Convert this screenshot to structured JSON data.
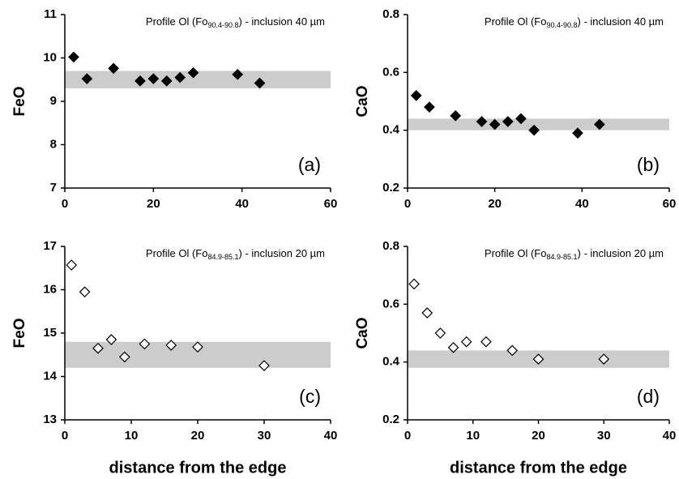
{
  "chart_data": [
    {
      "type": "scatter",
      "panel_label": "(a)",
      "y_label": "FeO",
      "annotation": {
        "prefix": "Profile Ol (Fo",
        "subscript": "90.4-90.8",
        "suffix": ") - inclusion 40 µm"
      },
      "x": [
        2,
        5,
        11,
        17,
        20,
        23,
        26,
        29,
        39,
        44
      ],
      "values": [
        10.02,
        9.52,
        9.76,
        9.47,
        9.52,
        9.47,
        9.55,
        9.66,
        9.62,
        9.42
      ],
      "marker_fill": "#000000",
      "band": [
        9.3,
        9.7
      ],
      "band_color": "#cccccc",
      "xlim": [
        0,
        60
      ],
      "xticks": [
        0,
        20,
        40,
        60
      ],
      "ylim": [
        7,
        11
      ],
      "yticks": [
        7,
        8,
        9,
        10,
        11
      ]
    },
    {
      "type": "scatter",
      "panel_label": "(b)",
      "y_label": "CaO",
      "annotation": {
        "prefix": "Profile Ol (Fo",
        "subscript": "90.4-90.8",
        "suffix": ") - inclusion 40 µm"
      },
      "x": [
        2,
        5,
        11,
        17,
        20,
        23,
        26,
        29,
        39,
        44
      ],
      "values": [
        0.52,
        0.48,
        0.45,
        0.43,
        0.42,
        0.43,
        0.44,
        0.4,
        0.39,
        0.42
      ],
      "marker_fill": "#000000",
      "band": [
        0.4,
        0.44
      ],
      "band_color": "#cccccc",
      "xlim": [
        0,
        60
      ],
      "xticks": [
        0,
        20,
        40,
        60
      ],
      "ylim": [
        0.2,
        0.8
      ],
      "yticks": [
        0.2,
        0.4,
        0.6,
        0.8
      ]
    },
    {
      "type": "scatter",
      "panel_label": "(c)",
      "y_label": "FeO",
      "x_label": "distance from the edge",
      "annotation": {
        "prefix": "Profile Ol (Fo",
        "subscript": "84.9-85.1",
        "suffix": ") - inclusion 20 µm"
      },
      "x": [
        1,
        3,
        5,
        7,
        9,
        12,
        16,
        20,
        30
      ],
      "values": [
        16.57,
        15.95,
        14.65,
        14.85,
        14.45,
        14.75,
        14.72,
        14.68,
        14.25
      ],
      "marker_fill": "#ffffff",
      "band": [
        14.2,
        14.8
      ],
      "band_color": "#cccccc",
      "xlim": [
        0,
        40
      ],
      "xticks": [
        0,
        10,
        20,
        30,
        40
      ],
      "ylim": [
        13,
        17
      ],
      "yticks": [
        13,
        14,
        15,
        16,
        17
      ]
    },
    {
      "type": "scatter",
      "panel_label": "(d)",
      "y_label": "CaO",
      "x_label": "distance from the edge",
      "annotation": {
        "prefix": "Profile Ol (Fo",
        "subscript": "84.9-85.1",
        "suffix": ") - inclusion 20 µm"
      },
      "x": [
        1,
        3,
        5,
        7,
        9,
        12,
        16,
        20,
        30
      ],
      "values": [
        0.67,
        0.57,
        0.5,
        0.45,
        0.47,
        0.47,
        0.44,
        0.41,
        0.41
      ],
      "marker_fill": "#ffffff",
      "band": [
        0.38,
        0.44
      ],
      "band_color": "#cccccc",
      "xlim": [
        0,
        40
      ],
      "xticks": [
        0,
        10,
        20,
        30,
        40
      ],
      "ylim": [
        0.2,
        0.8
      ],
      "yticks": [
        0.2,
        0.4,
        0.6,
        0.8
      ]
    }
  ]
}
